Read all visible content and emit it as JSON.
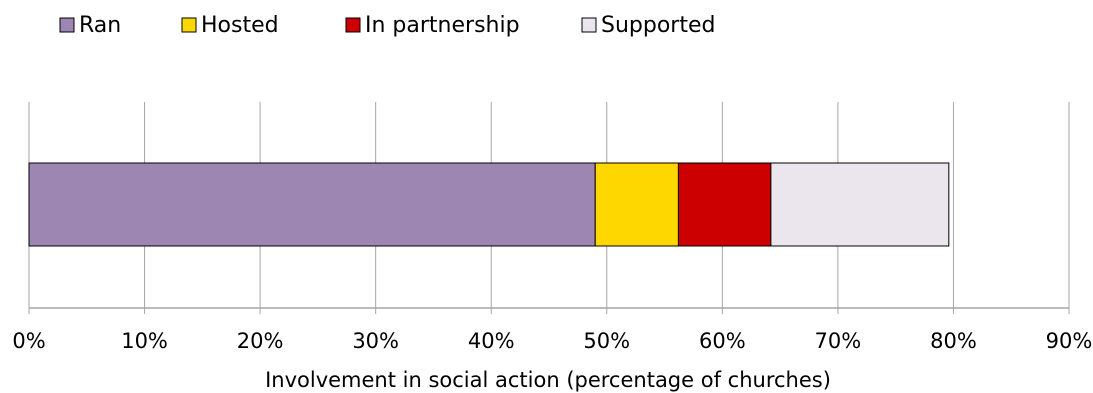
{
  "chart_data": {
    "type": "bar",
    "orientation": "horizontal",
    "stacked": true,
    "categories": [
      ""
    ],
    "series": [
      {
        "name": "Ran",
        "values": [
          49
        ],
        "color": "#9e86b3"
      },
      {
        "name": "Hosted",
        "values": [
          7.2
        ],
        "color": "#ffd700"
      },
      {
        "name": "In partnership",
        "values": [
          8
        ],
        "color": "#cc0000"
      },
      {
        "name": "Supported",
        "values": [
          15.4
        ],
        "color": "#ebe5ee"
      }
    ],
    "xlabel": "Involvement in social action (percentage of churches)",
    "ylabel": "",
    "xlim": [
      0,
      90
    ],
    "x_ticks": [
      "0%",
      "10%",
      "20%",
      "30%",
      "40%",
      "50%",
      "60%",
      "70%",
      "80%",
      "90%"
    ],
    "grid": "vertical",
    "legend_position": "top-left"
  }
}
